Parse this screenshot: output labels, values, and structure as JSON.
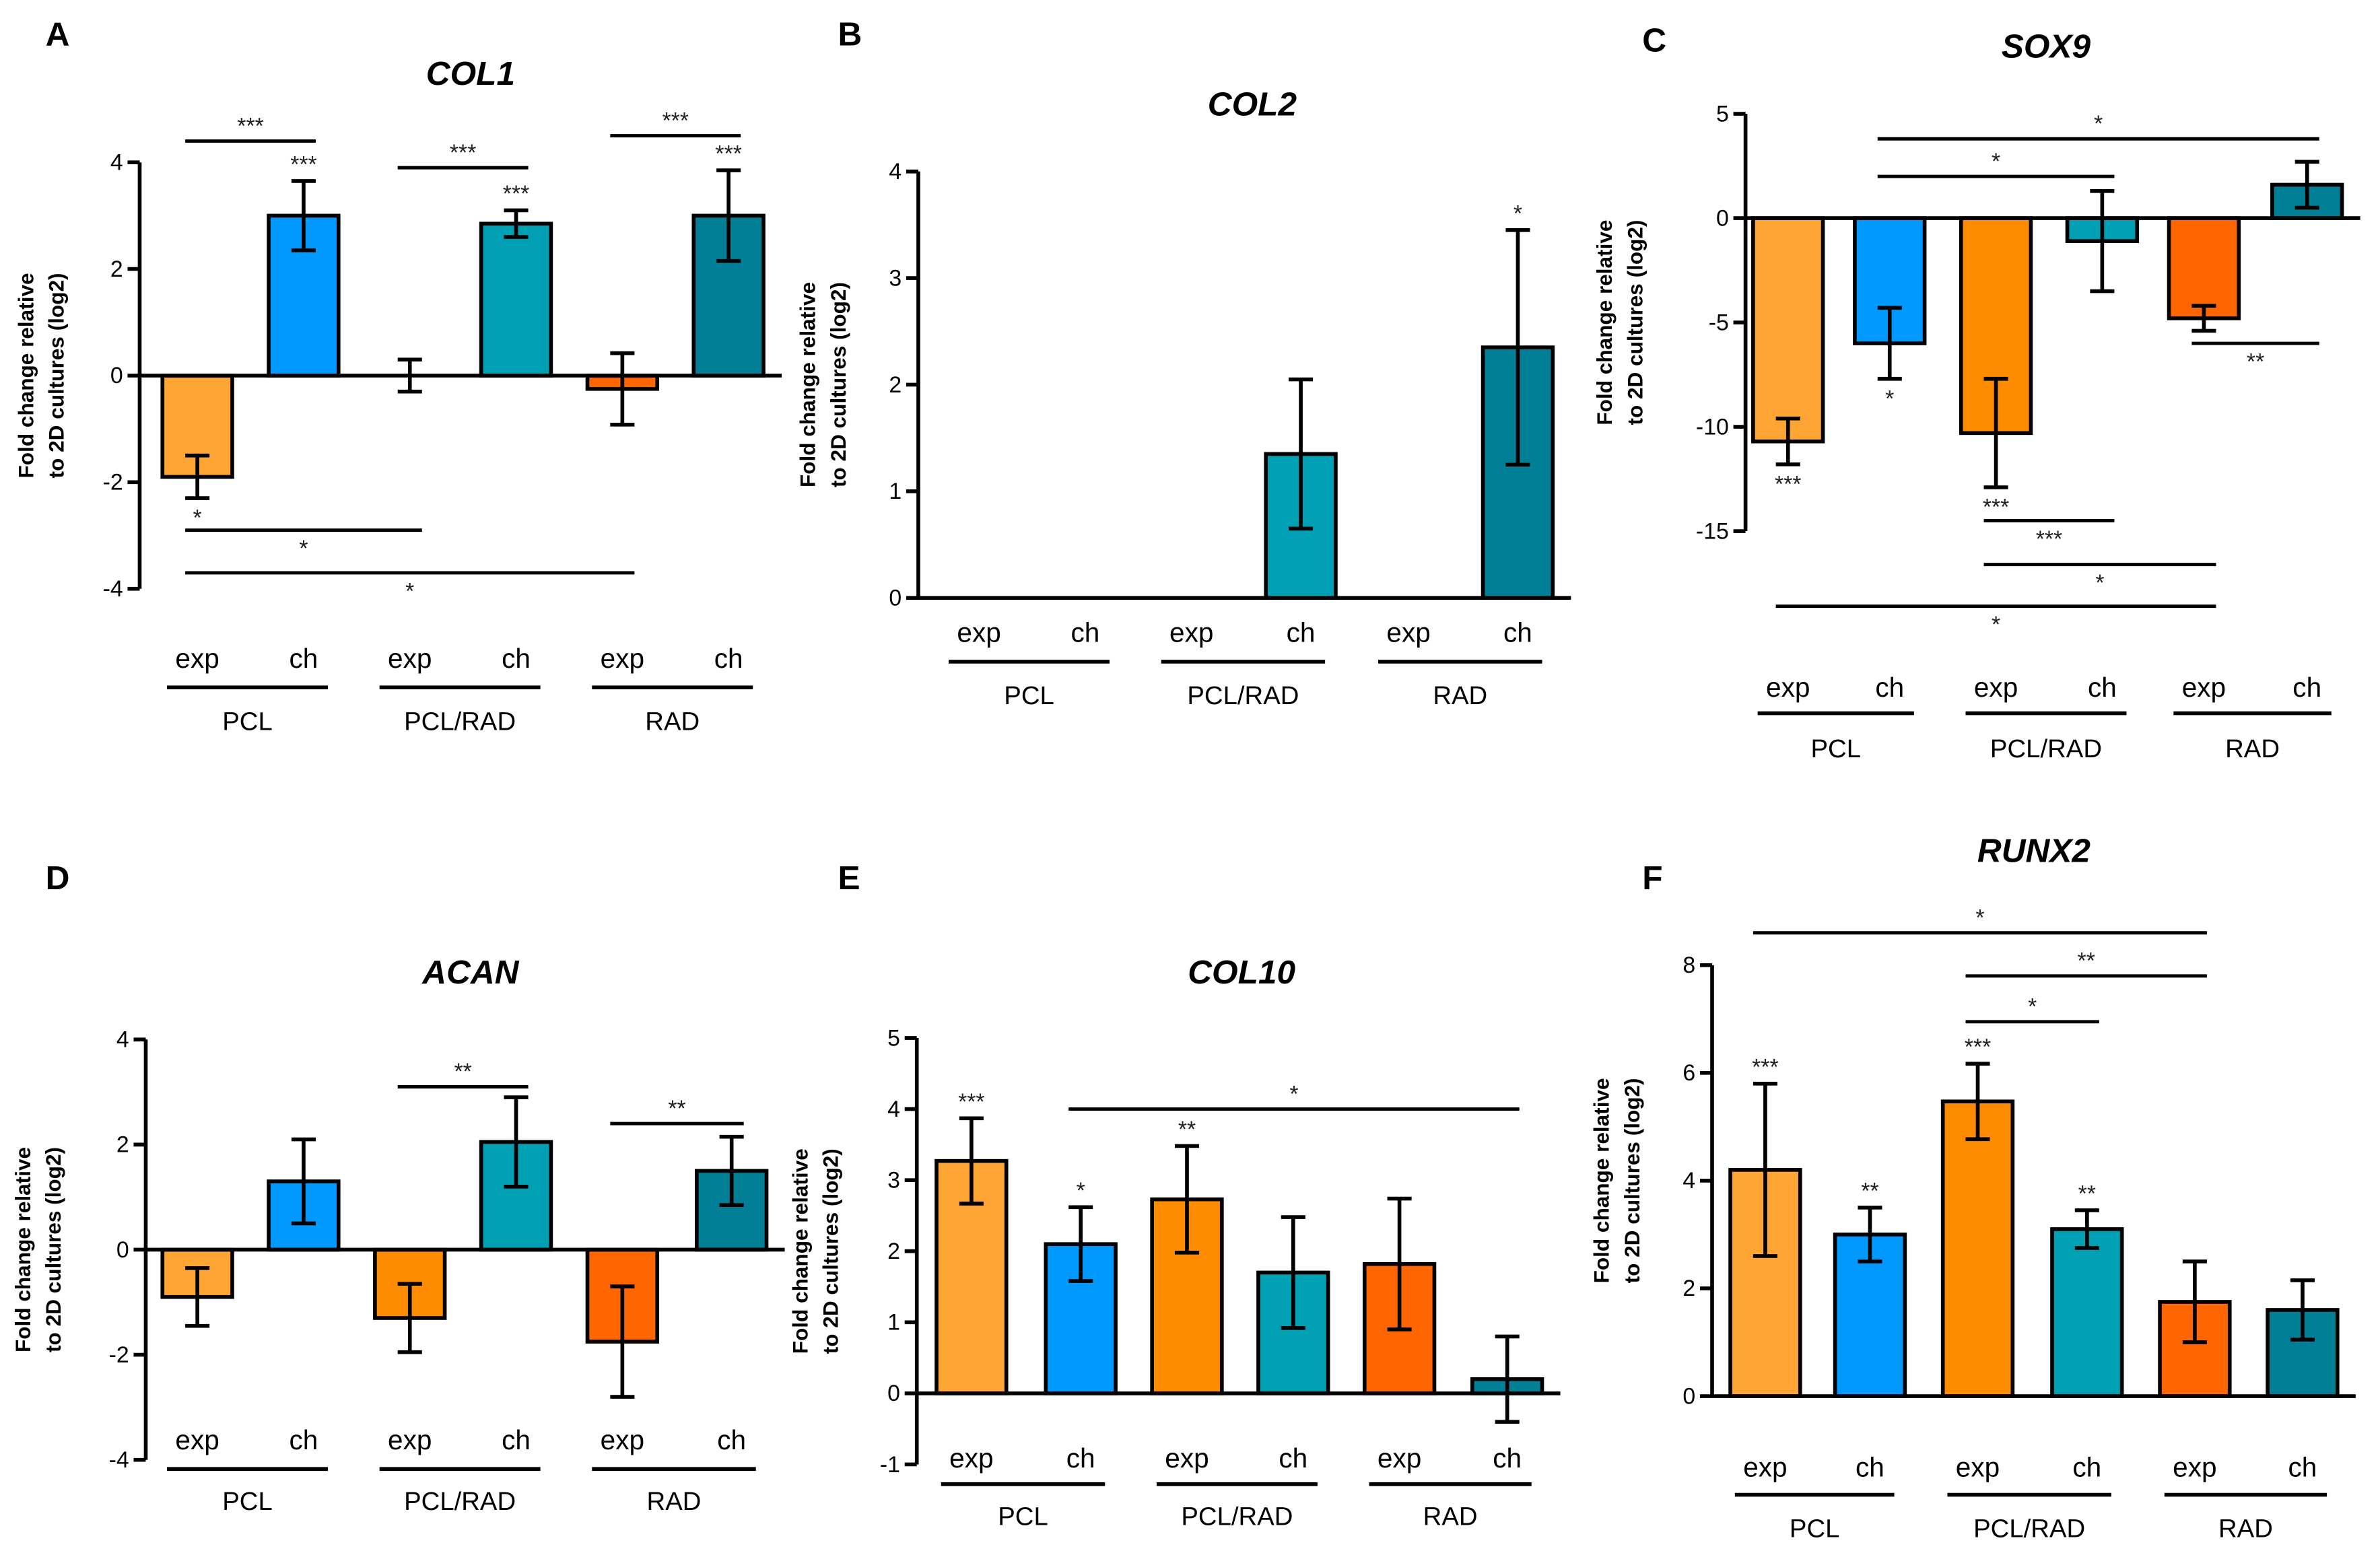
{
  "figure": {
    "ylabel_line1": "Fold change relative",
    "ylabel_line2": "to 2D cultures (log2)",
    "categories": [
      "exp",
      "ch",
      "exp",
      "ch",
      "exp",
      "ch"
    ],
    "groups": [
      "PCL",
      "PCL/RAD",
      "RAD"
    ],
    "colors": [
      "#FFA533",
      "#0099FF",
      "#FF8C00",
      "#00A0B4",
      "#FF6600",
      "#007F96"
    ]
  },
  "chart_data": [
    {
      "panel": "A",
      "type": "bar",
      "title": "COL1",
      "ylabel": "Fold change relative to 2D cultures (log2)",
      "ylim": [
        -4,
        4
      ],
      "yticks": [
        -4,
        -2,
        0,
        2,
        4
      ],
      "values": [
        -1.9,
        3.0,
        0.0,
        2.85,
        -0.25,
        3.0
      ],
      "errors": [
        0.4,
        0.65,
        0.3,
        0.25,
        0.67,
        0.85
      ],
      "bar_stars": [
        {
          "bar": 0,
          "text": "*",
          "side": "below"
        },
        {
          "bar": 1,
          "text": "***",
          "side": "above"
        },
        {
          "bar": 3,
          "text": "***",
          "side": "above"
        },
        {
          "bar": 5,
          "text": "***",
          "side": "above"
        }
      ],
      "brackets": [
        {
          "from": 0,
          "to": 1,
          "y": 4.4,
          "text": "***",
          "label": "above"
        },
        {
          "from": 2,
          "to": 3,
          "y": 3.9,
          "text": "***",
          "label": "above"
        },
        {
          "from": 4,
          "to": 5,
          "y": 4.5,
          "text": "***",
          "label": "above"
        },
        {
          "from": 0,
          "to": 2,
          "y": -2.9,
          "text": "*",
          "label": "below"
        },
        {
          "from": 0,
          "to": 4,
          "y": -3.7,
          "text": "*",
          "label": "below"
        }
      ]
    },
    {
      "panel": "B",
      "type": "bar",
      "title": "COL2",
      "ylabel": "Fold change relative to 2D cultures (log2)",
      "ylim": [
        0,
        4
      ],
      "yticks": [
        0,
        1,
        2,
        3,
        4
      ],
      "values": [
        0,
        0,
        0,
        1.35,
        0,
        2.35
      ],
      "errors": [
        0,
        0,
        0,
        0.7,
        0,
        1.1
      ],
      "bar_stars": [
        {
          "bar": 5,
          "text": "*",
          "side": "above"
        }
      ],
      "brackets": []
    },
    {
      "panel": "C",
      "type": "bar",
      "title": "SOX9",
      "ylabel": "Fold change relative to 2D cultures (log2)",
      "ylim": [
        -15,
        5
      ],
      "yticks": [
        -15,
        -10,
        -5,
        0,
        5
      ],
      "values": [
        -10.7,
        -6.0,
        -10.3,
        -1.1,
        -4.8,
        1.6
      ],
      "errors": [
        1.1,
        1.7,
        2.6,
        2.4,
        0.6,
        1.1
      ],
      "bar_stars": [
        {
          "bar": 0,
          "text": "***",
          "side": "below"
        },
        {
          "bar": 1,
          "text": "*",
          "side": "below"
        },
        {
          "bar": 2,
          "text": "***",
          "side": "below"
        }
      ],
      "brackets": [
        {
          "from": 1,
          "to": 5,
          "y": 3.8,
          "text": "*",
          "label": "above"
        },
        {
          "from": 1,
          "to": 3,
          "y": 2.0,
          "text": "*",
          "label": "above"
        },
        {
          "from": 4,
          "to": 5,
          "y": -6.0,
          "text": "**",
          "label": "below"
        },
        {
          "from": 2,
          "to": 3,
          "y": -14.5,
          "text": "***",
          "label": "below"
        },
        {
          "from": 2,
          "to": 4,
          "y": -16.6,
          "text": "*",
          "label": "below"
        },
        {
          "from": 0,
          "to": 4,
          "y": -18.6,
          "text": "*",
          "label": "below"
        }
      ]
    },
    {
      "panel": "D",
      "type": "bar",
      "title": "ACAN",
      "ylabel": "Fold change relative to 2D cultures (log2)",
      "ylim": [
        -4,
        4
      ],
      "yticks": [
        -4,
        -2,
        0,
        2,
        4
      ],
      "values": [
        -0.9,
        1.3,
        -1.3,
        2.05,
        -1.75,
        1.5
      ],
      "errors": [
        0.55,
        0.8,
        0.65,
        0.85,
        1.05,
        0.65
      ],
      "bar_stars": [],
      "brackets": [
        {
          "from": 2,
          "to": 3,
          "y": 3.1,
          "text": "**",
          "label": "above"
        },
        {
          "from": 4,
          "to": 5,
          "y": 2.4,
          "text": "**",
          "label": "above"
        }
      ]
    },
    {
      "panel": "E",
      "type": "bar",
      "title": "COL10",
      "ylabel": "Fold change relative to 2D cultures (log2)",
      "ylim": [
        -1,
        5
      ],
      "yticks": [
        -1,
        0,
        1,
        2,
        3,
        4,
        5
      ],
      "values": [
        3.27,
        2.1,
        2.73,
        1.7,
        1.82,
        0.2
      ],
      "errors": [
        0.6,
        0.52,
        0.75,
        0.78,
        0.92,
        0.6
      ],
      "bar_stars": [
        {
          "bar": 0,
          "text": "***",
          "side": "above"
        },
        {
          "bar": 1,
          "text": "*",
          "side": "above"
        },
        {
          "bar": 2,
          "text": "**",
          "side": "above"
        }
      ],
      "brackets": [
        {
          "from": 1,
          "to": 5,
          "y": 4.0,
          "text": "*",
          "label": "above"
        }
      ]
    },
    {
      "panel": "F",
      "type": "bar",
      "title": "RUNX2",
      "ylabel": "Fold change relative to 2D cultures (log2)",
      "ylim": [
        0,
        8
      ],
      "yticks": [
        0,
        2,
        4,
        6,
        8
      ],
      "values": [
        4.2,
        3.0,
        5.47,
        3.1,
        1.75,
        1.6
      ],
      "errors": [
        1.6,
        0.5,
        0.7,
        0.35,
        0.75,
        0.55
      ],
      "bar_stars": [
        {
          "bar": 0,
          "text": "***",
          "side": "above"
        },
        {
          "bar": 1,
          "text": "**",
          "side": "above"
        },
        {
          "bar": 2,
          "text": "***",
          "side": "above"
        },
        {
          "bar": 3,
          "text": "**",
          "side": "above"
        }
      ],
      "brackets": [
        {
          "from": 0,
          "to": 4,
          "y": 8.6,
          "text": "*",
          "label": "above"
        },
        {
          "from": 2,
          "to": 4,
          "y": 7.8,
          "text": "**",
          "label": "above"
        },
        {
          "from": 2,
          "to": 3,
          "y": 6.95,
          "text": "*",
          "label": "above"
        }
      ]
    }
  ]
}
